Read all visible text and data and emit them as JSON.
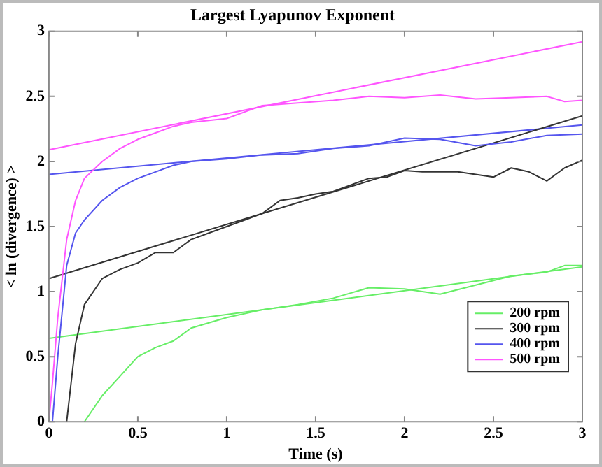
{
  "chart_data": {
    "type": "line",
    "title": "Largest Lyapunov Exponent",
    "xlabel": "Time (s)",
    "ylabel": "< ln (divergence) >",
    "xlim": [
      0,
      3
    ],
    "xticks": [
      0,
      0.5,
      1,
      1.5,
      2,
      2.5,
      3
    ],
    "ylim": [
      0,
      3
    ],
    "yticks": [
      0,
      0.5,
      1,
      1.5,
      2,
      2.5,
      3
    ],
    "grid": false,
    "legend": "bottom right",
    "marker": "none",
    "line_style": "solid",
    "series": [
      {
        "name": "200 rpm",
        "color": "#66ee66",
        "x": [
          0.2,
          0.3,
          0.4,
          0.5,
          0.6,
          0.7,
          0.8,
          0.9,
          1.0,
          1.2,
          1.4,
          1.6,
          1.8,
          2.0,
          2.2,
          2.4,
          2.6,
          2.8,
          2.9,
          3.0
        ],
        "values": [
          0,
          0.2,
          0.35,
          0.5,
          0.57,
          0.62,
          0.72,
          0.76,
          0.8,
          0.86,
          0.9,
          0.95,
          1.03,
          1.02,
          0.98,
          1.05,
          1.12,
          1.15,
          1.2,
          1.2
        ]
      },
      {
        "name": "300 rpm",
        "color": "#333333",
        "x": [
          0.1,
          0.15,
          0.2,
          0.3,
          0.4,
          0.5,
          0.6,
          0.7,
          0.8,
          0.9,
          1.0,
          1.1,
          1.2,
          1.3,
          1.4,
          1.5,
          1.6,
          1.7,
          1.8,
          1.9,
          2.0,
          2.1,
          2.3,
          2.5,
          2.6,
          2.7,
          2.8,
          2.9,
          3.0
        ],
        "values": [
          0,
          0.6,
          0.9,
          1.1,
          1.17,
          1.22,
          1.3,
          1.3,
          1.4,
          1.45,
          1.5,
          1.55,
          1.6,
          1.7,
          1.72,
          1.75,
          1.77,
          1.82,
          1.87,
          1.88,
          1.93,
          1.92,
          1.92,
          1.88,
          1.95,
          1.92,
          1.85,
          1.95,
          2.01
        ]
      },
      {
        "name": "400 rpm",
        "color": "#5555ee",
        "x": [
          0.02,
          0.05,
          0.1,
          0.15,
          0.2,
          0.3,
          0.4,
          0.5,
          0.6,
          0.7,
          0.8,
          1.0,
          1.2,
          1.4,
          1.6,
          1.8,
          2.0,
          2.2,
          2.4,
          2.6,
          2.8,
          3.0
        ],
        "values": [
          0,
          0.5,
          1.2,
          1.45,
          1.55,
          1.7,
          1.8,
          1.87,
          1.92,
          1.97,
          2.0,
          2.02,
          2.05,
          2.06,
          2.1,
          2.12,
          2.18,
          2.17,
          2.12,
          2.15,
          2.2,
          2.21
        ]
      },
      {
        "name": "500 rpm",
        "color": "#ff55ff",
        "x": [
          0,
          0.02,
          0.05,
          0.1,
          0.15,
          0.2,
          0.3,
          0.4,
          0.5,
          0.6,
          0.7,
          0.8,
          1.0,
          1.2,
          1.4,
          1.6,
          1.8,
          2.0,
          2.2,
          2.4,
          2.6,
          2.8,
          2.9,
          3.0
        ],
        "values": [
          0,
          0.3,
          0.8,
          1.4,
          1.7,
          1.87,
          2.0,
          2.1,
          2.17,
          2.22,
          2.27,
          2.3,
          2.33,
          2.43,
          2.45,
          2.47,
          2.5,
          2.49,
          2.51,
          2.48,
          2.49,
          2.5,
          2.46,
          2.47
        ]
      },
      {
        "color": "#66ee66",
        "x": [
          0,
          3
        ],
        "values": [
          0.64,
          1.19
        ]
      },
      {
        "color": "#333333",
        "x": [
          0,
          3
        ],
        "values": [
          1.1,
          2.35
        ]
      },
      {
        "color": "#5555ee",
        "x": [
          0,
          3
        ],
        "values": [
          1.9,
          2.28
        ]
      },
      {
        "color": "#ff55ff",
        "x": [
          0,
          3
        ],
        "values": [
          2.09,
          2.92
        ]
      }
    ]
  }
}
